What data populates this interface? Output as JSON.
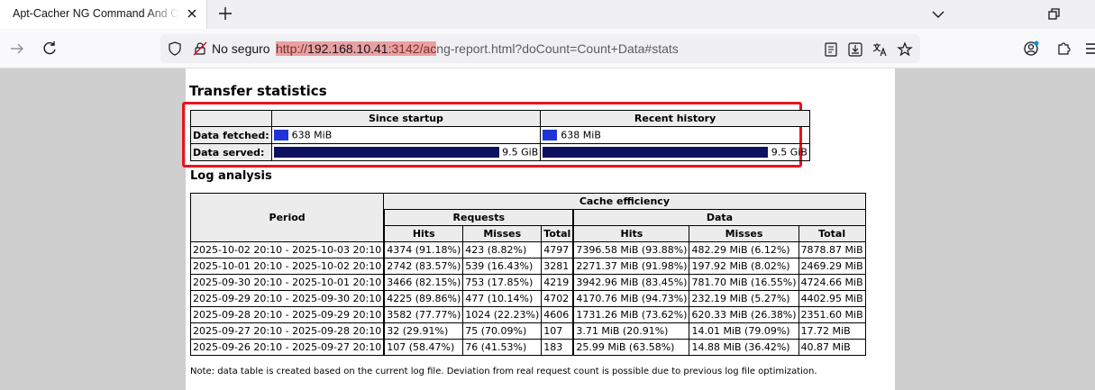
{
  "browser": {
    "tab_title": "Apt-Cacher NG Command And Co",
    "security_label": "No seguro",
    "url_scheme": "http://",
    "url_host": "192.168.10.41",
    "url_port": ":3142/ac",
    "url_rest": "ng-report.html?doCount=Count+Data#stats"
  },
  "transfer": {
    "title": "Transfer statistics",
    "col_since": "Since startup",
    "col_recent": "Recent history",
    "rows": [
      {
        "label": "Data fetched:",
        "since": "638 MiB",
        "recent": "638 MiB"
      },
      {
        "label": "Data served:",
        "since": "9.5 GiB",
        "recent": "9.5 GiB"
      }
    ]
  },
  "log": {
    "title": "Log analysis",
    "h_period": "Period",
    "h_cache": "Cache efficiency",
    "h_requests": "Requests",
    "h_data": "Data",
    "h_hits": "Hits",
    "h_misses": "Misses",
    "h_total": "Total",
    "rows": [
      {
        "period": "2025-10-02 20:10 - 2025-10-03 20:10",
        "r_hits": "4374 (91.18%)",
        "r_misses": "423 (8.82%)",
        "r_total": "4797",
        "d_hits": "7396.58 MiB (93.88%)",
        "d_misses": "482.29 MiB (6.12%)",
        "d_total": "7878.87 MiB"
      },
      {
        "period": "2025-10-01 20:10 - 2025-10-02 20:10",
        "r_hits": "2742 (83.57%)",
        "r_misses": "539 (16.43%)",
        "r_total": "3281",
        "d_hits": "2271.37 MiB (91.98%)",
        "d_misses": "197.92 MiB (8.02%)",
        "d_total": "2469.29 MiB"
      },
      {
        "period": "2025-09-30 20:10 - 2025-10-01 20:10",
        "r_hits": "3466 (82.15%)",
        "r_misses": "753 (17.85%)",
        "r_total": "4219",
        "d_hits": "3942.96 MiB (83.45%)",
        "d_misses": "781.70 MiB (16.55%)",
        "d_total": "4724.66 MiB"
      },
      {
        "period": "2025-09-29 20:10 - 2025-09-30 20:10",
        "r_hits": "4225 (89.86%)",
        "r_misses": "477 (10.14%)",
        "r_total": "4702",
        "d_hits": "4170.76 MiB (94.73%)",
        "d_misses": "232.19 MiB (5.27%)",
        "d_total": "4402.95 MiB"
      },
      {
        "period": "2025-09-28 20:10 - 2025-09-29 20:10",
        "r_hits": "3582 (77.77%)",
        "r_misses": "1024 (22.23%)",
        "r_total": "4606",
        "d_hits": "1731.26 MiB (73.62%)",
        "d_misses": "620.33 MiB (26.38%)",
        "d_total": "2351.60 MiB"
      },
      {
        "period": "2025-09-27 20:10 - 2025-09-28 20:10",
        "r_hits": "32 (29.91%)",
        "r_misses": "75 (70.09%)",
        "r_total": "107",
        "d_hits": "3.71 MiB (20.91%)",
        "d_misses": "14.01 MiB (79.09%)",
        "d_total": "17.72 MiB"
      },
      {
        "period": "2025-09-26 20:10 - 2025-09-27 20:10",
        "r_hits": "107 (58.47%)",
        "r_misses": "76 (41.53%)",
        "r_total": "183",
        "d_hits": "25.99 MiB (63.58%)",
        "d_misses": "14.88 MiB (36.42%)",
        "d_total": "40.87 MiB"
      }
    ],
    "note": "Note: data table is created based on the current log file. Deviation from real request count is possible due to previous log file optimization."
  }
}
